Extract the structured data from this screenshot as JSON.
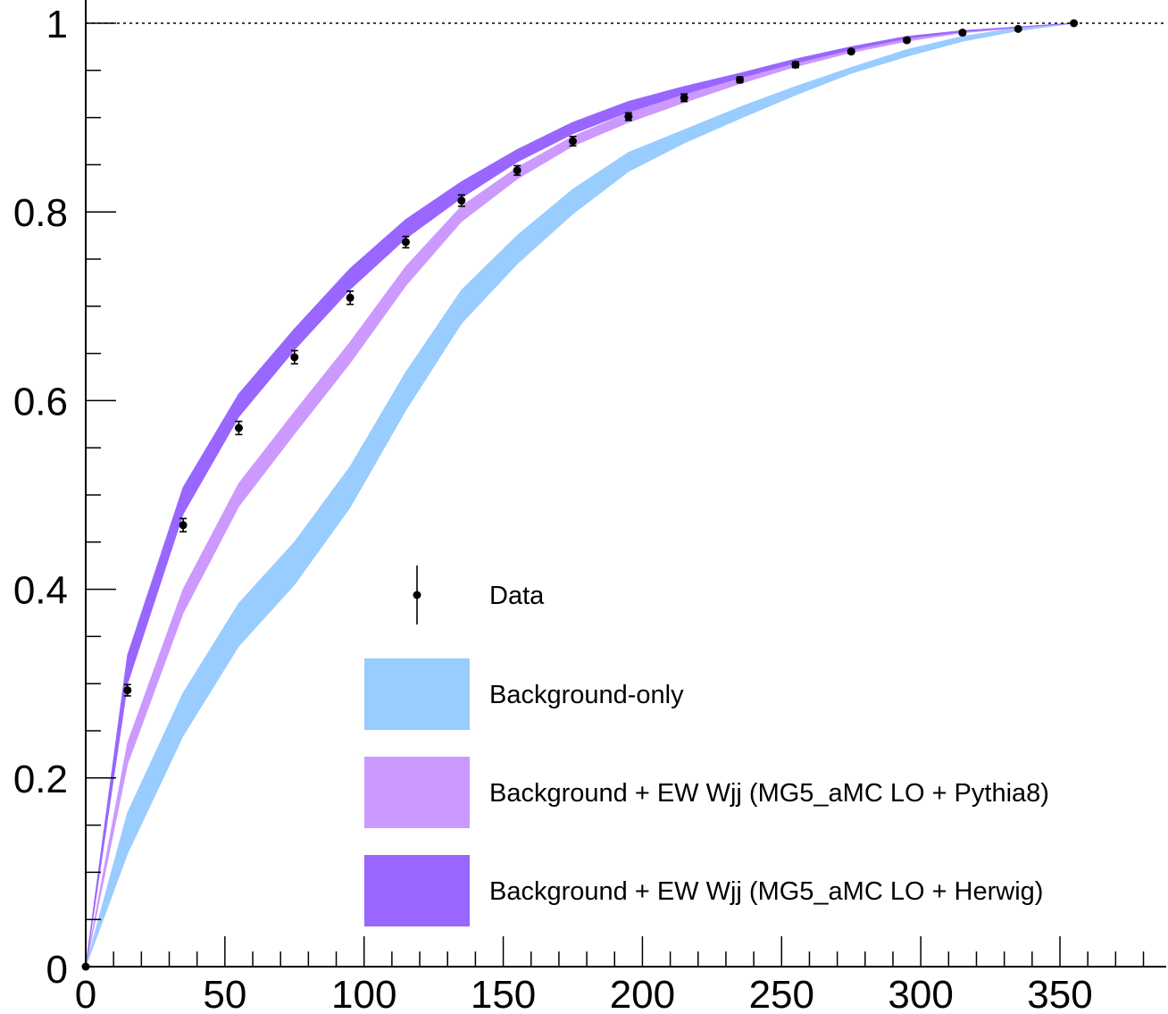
{
  "chart_data": {
    "type": "line",
    "title": "",
    "xlabel": "",
    "ylabel": "",
    "xlim": [
      0,
      390
    ],
    "ylim": [
      0,
      1
    ],
    "x_ticks": [
      0,
      50,
      100,
      150,
      200,
      250,
      300,
      350
    ],
    "y_ticks": [
      0,
      0.2,
      0.4,
      0.6,
      0.8,
      1
    ],
    "x_tick_labels": [
      "0",
      "50",
      "100",
      "150",
      "200",
      "250",
      "300",
      "350"
    ],
    "y_tick_labels": [
      "0",
      "0.2",
      "0.4",
      "0.6",
      "0.8",
      "1"
    ],
    "reference_line": {
      "y": 1,
      "style": "dotted"
    },
    "grid": false,
    "legend_position": "bottom-right",
    "series": [
      {
        "name": "Data",
        "kind": "points",
        "color": "#000000",
        "x": [
          0,
          15,
          35,
          55,
          75,
          95,
          115,
          135,
          155,
          175,
          195,
          215,
          235,
          255,
          275,
          295,
          315,
          335,
          355
        ],
        "y": [
          0,
          0.293,
          0.468,
          0.571,
          0.646,
          0.709,
          0.768,
          0.812,
          0.844,
          0.875,
          0.901,
          0.921,
          0.94,
          0.956,
          0.97,
          0.982,
          0.99,
          0.994,
          1.0
        ],
        "err": [
          0,
          0.006,
          0.007,
          0.007,
          0.007,
          0.007,
          0.006,
          0.006,
          0.005,
          0.005,
          0.004,
          0.004,
          0.003,
          0.003,
          0.002,
          0.002,
          0.002,
          0.001,
          0
        ]
      },
      {
        "name": "Background-only",
        "kind": "band",
        "color": "#99ccff",
        "x": [
          0,
          15,
          35,
          55,
          75,
          95,
          115,
          135,
          155,
          175,
          195,
          215,
          235,
          255,
          275,
          295,
          315,
          335,
          355
        ],
        "low": [
          0,
          0.12,
          0.245,
          0.34,
          0.405,
          0.487,
          0.59,
          0.682,
          0.745,
          0.798,
          0.843,
          0.873,
          0.899,
          0.924,
          0.947,
          0.965,
          0.981,
          0.992,
          1.0
        ],
        "high": [
          0,
          0.163,
          0.29,
          0.385,
          0.45,
          0.53,
          0.63,
          0.717,
          0.775,
          0.824,
          0.863,
          0.887,
          0.911,
          0.933,
          0.953,
          0.972,
          0.986,
          0.995,
          1.0
        ]
      },
      {
        "name": "Background + EW Wjj (MG5_aMC LO + Pythia8)",
        "kind": "band",
        "color": "#cc99ff",
        "x": [
          0,
          15,
          35,
          55,
          75,
          95,
          115,
          135,
          155,
          175,
          195,
          215,
          235,
          255,
          275,
          295,
          315,
          335,
          355
        ],
        "low": [
          0,
          0.215,
          0.375,
          0.488,
          0.565,
          0.64,
          0.722,
          0.79,
          0.835,
          0.87,
          0.895,
          0.916,
          0.936,
          0.954,
          0.969,
          0.981,
          0.99,
          0.995,
          1.0
        ],
        "high": [
          0,
          0.237,
          0.4,
          0.512,
          0.588,
          0.662,
          0.742,
          0.806,
          0.847,
          0.88,
          0.905,
          0.926,
          0.944,
          0.96,
          0.974,
          0.984,
          0.992,
          0.996,
          1.0
        ]
      },
      {
        "name": "Background + EW Wjj (MG5_aMC LO + Herwig)",
        "kind": "band",
        "color": "#9966ff",
        "x": [
          0,
          15,
          35,
          55,
          75,
          95,
          115,
          135,
          155,
          175,
          195,
          215,
          235,
          255,
          275,
          295,
          315,
          335,
          355
        ],
        "low": [
          0,
          0.3,
          0.48,
          0.583,
          0.654,
          0.718,
          0.772,
          0.815,
          0.853,
          0.883,
          0.906,
          0.925,
          0.942,
          0.958,
          0.972,
          0.984,
          0.991,
          0.996,
          1.0
        ],
        "high": [
          0,
          0.33,
          0.508,
          0.607,
          0.676,
          0.74,
          0.792,
          0.832,
          0.866,
          0.895,
          0.917,
          0.933,
          0.947,
          0.962,
          0.975,
          0.986,
          0.992,
          0.996,
          1.0
        ]
      }
    ],
    "legend": [
      {
        "label": "Data",
        "color": "#000000",
        "kind": "points"
      },
      {
        "label": "Background-only",
        "color": "#99ccff",
        "kind": "band"
      },
      {
        "label": "Background + EW Wjj (MG5_aMC LO + Pythia8)",
        "color": "#cc99ff",
        "kind": "band"
      },
      {
        "label": "Background + EW Wjj (MG5_aMC LO + Herwig)",
        "color": "#9966ff",
        "kind": "band"
      }
    ]
  }
}
